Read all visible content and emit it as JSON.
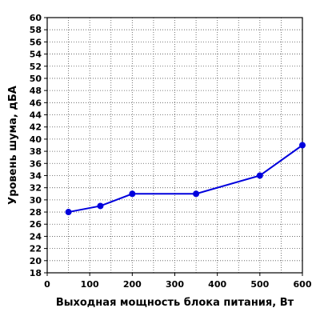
{
  "chart_data": {
    "type": "line",
    "xlabel": "Выходная мощность блока питания, Вт",
    "ylabel": "Уровень шума, дБА",
    "xlim": [
      0,
      600
    ],
    "ylim": [
      18,
      60
    ],
    "x_ticks": [
      0,
      100,
      200,
      300,
      400,
      500,
      600
    ],
    "y_ticks": [
      18,
      20,
      22,
      24,
      26,
      28,
      30,
      32,
      34,
      36,
      38,
      40,
      42,
      44,
      46,
      48,
      50,
      52,
      54,
      56,
      58,
      60
    ],
    "x_minor_step": 50,
    "grid": true,
    "legend": "none",
    "series": [
      {
        "color": "#0000dd",
        "x": [
          50,
          125,
          200,
          350,
          500,
          600
        ],
        "y": [
          28,
          29,
          31,
          31,
          34,
          39
        ]
      }
    ]
  }
}
